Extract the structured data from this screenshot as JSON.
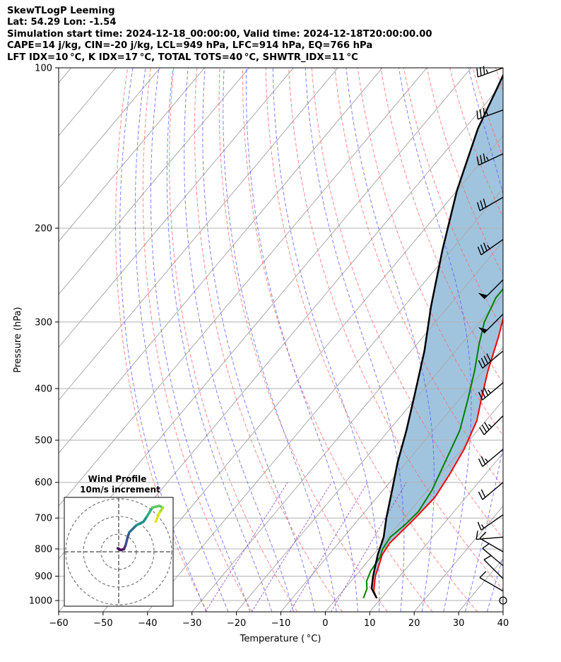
{
  "header": {
    "line1": "SkewTLogP Leeming",
    "line2": "Lat: 54.29   Lon: -1.54",
    "line3": "Simulation start time: 2024-12-18_00:00:00, Valid time: 2024-12-18T20:00:00.00",
    "line4": "CAPE=14 j/kg, CIN=-20 j/kg, LCL=949 hPa, LFC=914 hPa, EQ=766 hPa",
    "line5": "LFT IDX=10 °C, K IDX=17 °C, TOTAL TOTS=40 °C, SHWTR_IDX=11 °C"
  },
  "chart_data": {
    "type": "line",
    "subtype": "skew-t log-p",
    "xlabel": "Temperature ( °C)",
    "ylabel": "Pressure (hPa)",
    "xlim": [
      -60,
      40
    ],
    "ylim": [
      1050,
      100
    ],
    "y_scale": "log",
    "grid": true,
    "x_ticks": [
      -60,
      -50,
      -40,
      -30,
      -20,
      -10,
      0,
      10,
      20,
      30,
      40
    ],
    "y_ticks": [
      1000,
      900,
      800,
      700,
      600,
      500,
      400,
      300,
      200,
      100
    ],
    "colors": {
      "temperature": "#ff0000",
      "dewpoint": "#008000",
      "parcel": "#000000",
      "cape_fill": "#a0c4de",
      "dry_adiabat": "#ff6060",
      "moist_adiabat": "#5555ff",
      "mixing_ratio": "#9040c0",
      "isotherm": "#aaaaaa"
    },
    "series": [
      {
        "key": "temperature",
        "points": [
          [
            9,
            990
          ],
          [
            7,
            960
          ],
          [
            4.5,
            900
          ],
          [
            3,
            850
          ],
          [
            2,
            820
          ],
          [
            1.5,
            780
          ],
          [
            2,
            740
          ],
          [
            2.5,
            700
          ],
          [
            3,
            640
          ],
          [
            2,
            580
          ],
          [
            0.5,
            520
          ],
          [
            -2,
            460
          ],
          [
            -5,
            420
          ],
          [
            -9,
            370
          ],
          [
            -13,
            320
          ],
          [
            -16,
            290
          ],
          [
            -17,
            265
          ],
          [
            -16,
            250
          ],
          [
            -10,
            220
          ],
          [
            -5,
            200
          ],
          [
            -2,
            185
          ],
          [
            0,
            175
          ],
          [
            3,
            155
          ],
          [
            6,
            140
          ],
          [
            8,
            125
          ],
          [
            10,
            110
          ],
          [
            11,
            100
          ]
        ]
      },
      {
        "key": "dewpoint",
        "points": [
          [
            6,
            990
          ],
          [
            5,
            950
          ],
          [
            3.5,
            920
          ],
          [
            2.5,
            880
          ],
          [
            2,
            830
          ],
          [
            1,
            800
          ],
          [
            0.5,
            760
          ],
          [
            1.5,
            720
          ],
          [
            2,
            680
          ],
          [
            1,
            620
          ],
          [
            -1,
            560
          ],
          [
            -4,
            480
          ],
          [
            -8,
            420
          ],
          [
            -12,
            370
          ],
          [
            -16,
            330
          ],
          [
            -19,
            300
          ],
          [
            -21,
            270
          ],
          [
            -21,
            245
          ],
          [
            -22,
            225
          ],
          [
            -24,
            205
          ],
          [
            -25,
            190
          ],
          [
            -24,
            170
          ],
          [
            -21,
            150
          ],
          [
            -18,
            130
          ],
          [
            -15,
            115
          ],
          [
            -12,
            100
          ]
        ]
      },
      {
        "key": "parcel",
        "points": [
          [
            9,
            990
          ],
          [
            6,
            949
          ],
          [
            4,
            900
          ],
          [
            1,
            820
          ],
          [
            -1,
            760
          ],
          [
            -4,
            700
          ],
          [
            -8,
            620
          ],
          [
            -12,
            550
          ],
          [
            -16,
            480
          ],
          [
            -21,
            410
          ],
          [
            -27,
            340
          ],
          [
            -34,
            280
          ],
          [
            -42,
            220
          ],
          [
            -50,
            170
          ],
          [
            -57,
            130
          ],
          [
            -62,
            100
          ]
        ]
      }
    ],
    "wind_barbs": [
      {
        "p": 100,
        "speed_kt": 35,
        "dir": 250
      },
      {
        "p": 120,
        "speed_kt": 35,
        "dir": 250
      },
      {
        "p": 145,
        "speed_kt": 35,
        "dir": 245
      },
      {
        "p": 175,
        "speed_kt": 30,
        "dir": 240
      },
      {
        "p": 210,
        "speed_kt": 35,
        "dir": 235
      },
      {
        "p": 250,
        "speed_kt": 50,
        "dir": 225
      },
      {
        "p": 290,
        "speed_kt": 50,
        "dir": 225
      },
      {
        "p": 340,
        "speed_kt": 40,
        "dir": 230
      },
      {
        "p": 390,
        "speed_kt": 35,
        "dir": 230
      },
      {
        "p": 450,
        "speed_kt": 35,
        "dir": 225
      },
      {
        "p": 520,
        "speed_kt": 25,
        "dir": 230
      },
      {
        "p": 600,
        "speed_kt": 20,
        "dir": 230
      },
      {
        "p": 690,
        "speed_kt": 15,
        "dir": 235
      },
      {
        "p": 760,
        "speed_kt": 10,
        "dir": 265
      },
      {
        "p": 810,
        "speed_kt": 10,
        "dir": 300
      },
      {
        "p": 860,
        "speed_kt": 10,
        "dir": 310
      },
      {
        "p": 910,
        "speed_kt": 10,
        "dir": 315
      },
      {
        "p": 960,
        "speed_kt": 10,
        "dir": 300
      },
      {
        "p": 1000,
        "speed_kt": 0,
        "dir": 0
      }
    ],
    "hodograph": {
      "title_line1": "Wind Profile",
      "title_line2": "10m/s increment",
      "rings": [
        10,
        20,
        30
      ],
      "points": [
        [
          -0.5,
          2
        ],
        [
          1,
          1
        ],
        [
          3,
          1.5
        ],
        [
          4,
          4
        ],
        [
          5,
          8
        ],
        [
          6,
          11
        ],
        [
          10,
          15
        ],
        [
          14,
          17
        ],
        [
          16,
          20
        ],
        [
          19,
          25
        ],
        [
          23,
          26
        ],
        [
          25,
          25
        ],
        [
          23,
          22
        ],
        [
          21,
          17
        ]
      ],
      "colors": [
        "#440154",
        "#472d7b",
        "#3b528b",
        "#2c728e",
        "#21918c",
        "#28ae80",
        "#5ec962",
        "#addc30",
        "#dde318"
      ]
    }
  }
}
